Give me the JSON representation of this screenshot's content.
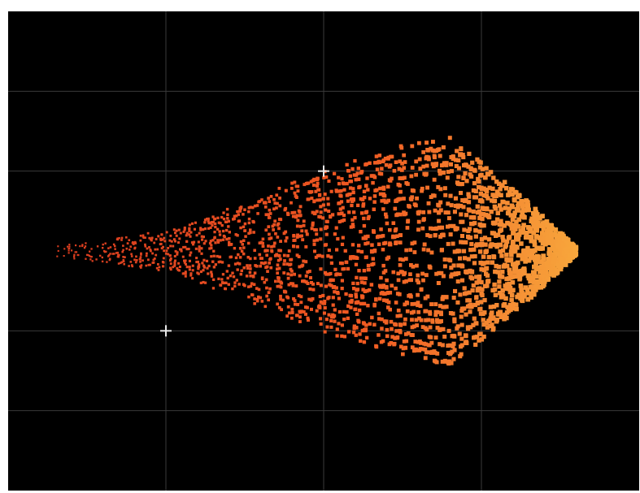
{
  "colors": {
    "background": "#000000",
    "grid": "#3a3a3a",
    "marker": "#e8e8e8",
    "point_low": "#d63a1e",
    "point_mid": "#f15a22",
    "point_high": "#f7a63c"
  },
  "chart_data": {
    "type": "scatter",
    "title": "",
    "xlabel": "",
    "ylabel": "",
    "grid": true,
    "legend": "none",
    "xlim": [
      0,
      4
    ],
    "ylim": [
      -3,
      3
    ],
    "envelope": {
      "x_start": 0.25,
      "x_end": 3.6,
      "spread_at_x": [
        {
          "x": 0.25,
          "half_width": 0.05
        },
        {
          "x": 1.0,
          "half_width": 0.25
        },
        {
          "x": 1.5,
          "half_width": 0.6
        },
        {
          "x": 2.0,
          "half_width": 1.0
        },
        {
          "x": 2.5,
          "half_width": 1.3
        },
        {
          "x": 2.8,
          "half_width": 1.4
        },
        {
          "x": 3.0,
          "half_width": 1.1
        },
        {
          "x": 3.3,
          "half_width": 0.6
        },
        {
          "x": 3.6,
          "half_width": 0.05
        }
      ],
      "point_count": 2600
    },
    "markers": [
      {
        "name": "plus-marker",
        "x": 2.0,
        "y": 1.0
      },
      {
        "name": "plus-marker",
        "x": 1.0,
        "y": -1.0
      }
    ]
  }
}
